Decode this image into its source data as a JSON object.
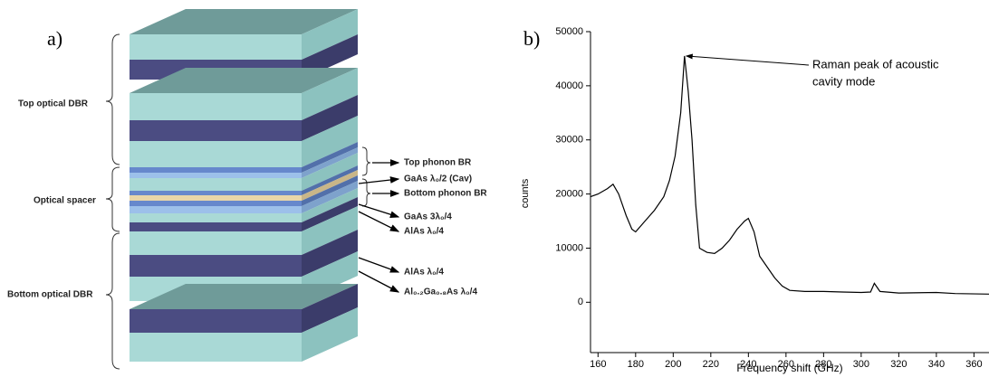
{
  "diagram": {
    "panel_label": "a)",
    "left_labels": [
      "Top optical DBR",
      "Optical spacer",
      "Bottom optical DBR"
    ],
    "right_labels": [
      "Top phonon BR",
      "GaAs λ₀/2 (Cav)",
      "Bottom phonon BR",
      "GaAs 3λ₀/4",
      "AlAs λ₀/4",
      "AlAs λ₀/4",
      "Al₀.₂Ga₀.₈As λ₀/4"
    ]
  },
  "chart_data": {
    "type": "line",
    "panel_label": "b)",
    "x_label": "Frequency shift (GHz)",
    "y_label": "counts",
    "color": "#000000",
    "x": [
      156,
      160,
      165,
      168,
      171,
      175,
      178,
      180,
      185,
      190,
      195,
      198,
      201,
      204,
      206,
      208,
      210,
      212,
      214,
      218,
      222,
      226,
      230,
      234,
      238,
      240,
      243,
      246,
      250,
      254,
      258,
      262,
      270,
      280,
      290,
      300,
      305,
      307,
      310,
      320,
      340,
      350,
      368
    ],
    "values": [
      19500,
      20000,
      21000,
      21800,
      20000,
      16000,
      13500,
      13000,
      15000,
      17000,
      19500,
      22500,
      27000,
      35000,
      45500,
      39000,
      30000,
      18000,
      10000,
      9200,
      9000,
      10000,
      11500,
      13500,
      15000,
      15500,
      13000,
      8500,
      6500,
      4500,
      3000,
      2200,
      2000,
      2000,
      1900,
      1800,
      1900,
      3500,
      2000,
      1700,
      1800,
      1600,
      1500
    ],
    "xlim": [
      156,
      368
    ],
    "ylim": [
      -9300,
      50000
    ],
    "xticks": [
      160,
      180,
      200,
      220,
      240,
      260,
      280,
      300,
      320,
      340,
      360
    ],
    "yticks": [
      0,
      10000,
      20000,
      30000,
      40000,
      50000
    ],
    "annotation": {
      "text": [
        "Raman peak of acoustic",
        "cavity mode"
      ],
      "x": 206,
      "y": 45500
    }
  }
}
